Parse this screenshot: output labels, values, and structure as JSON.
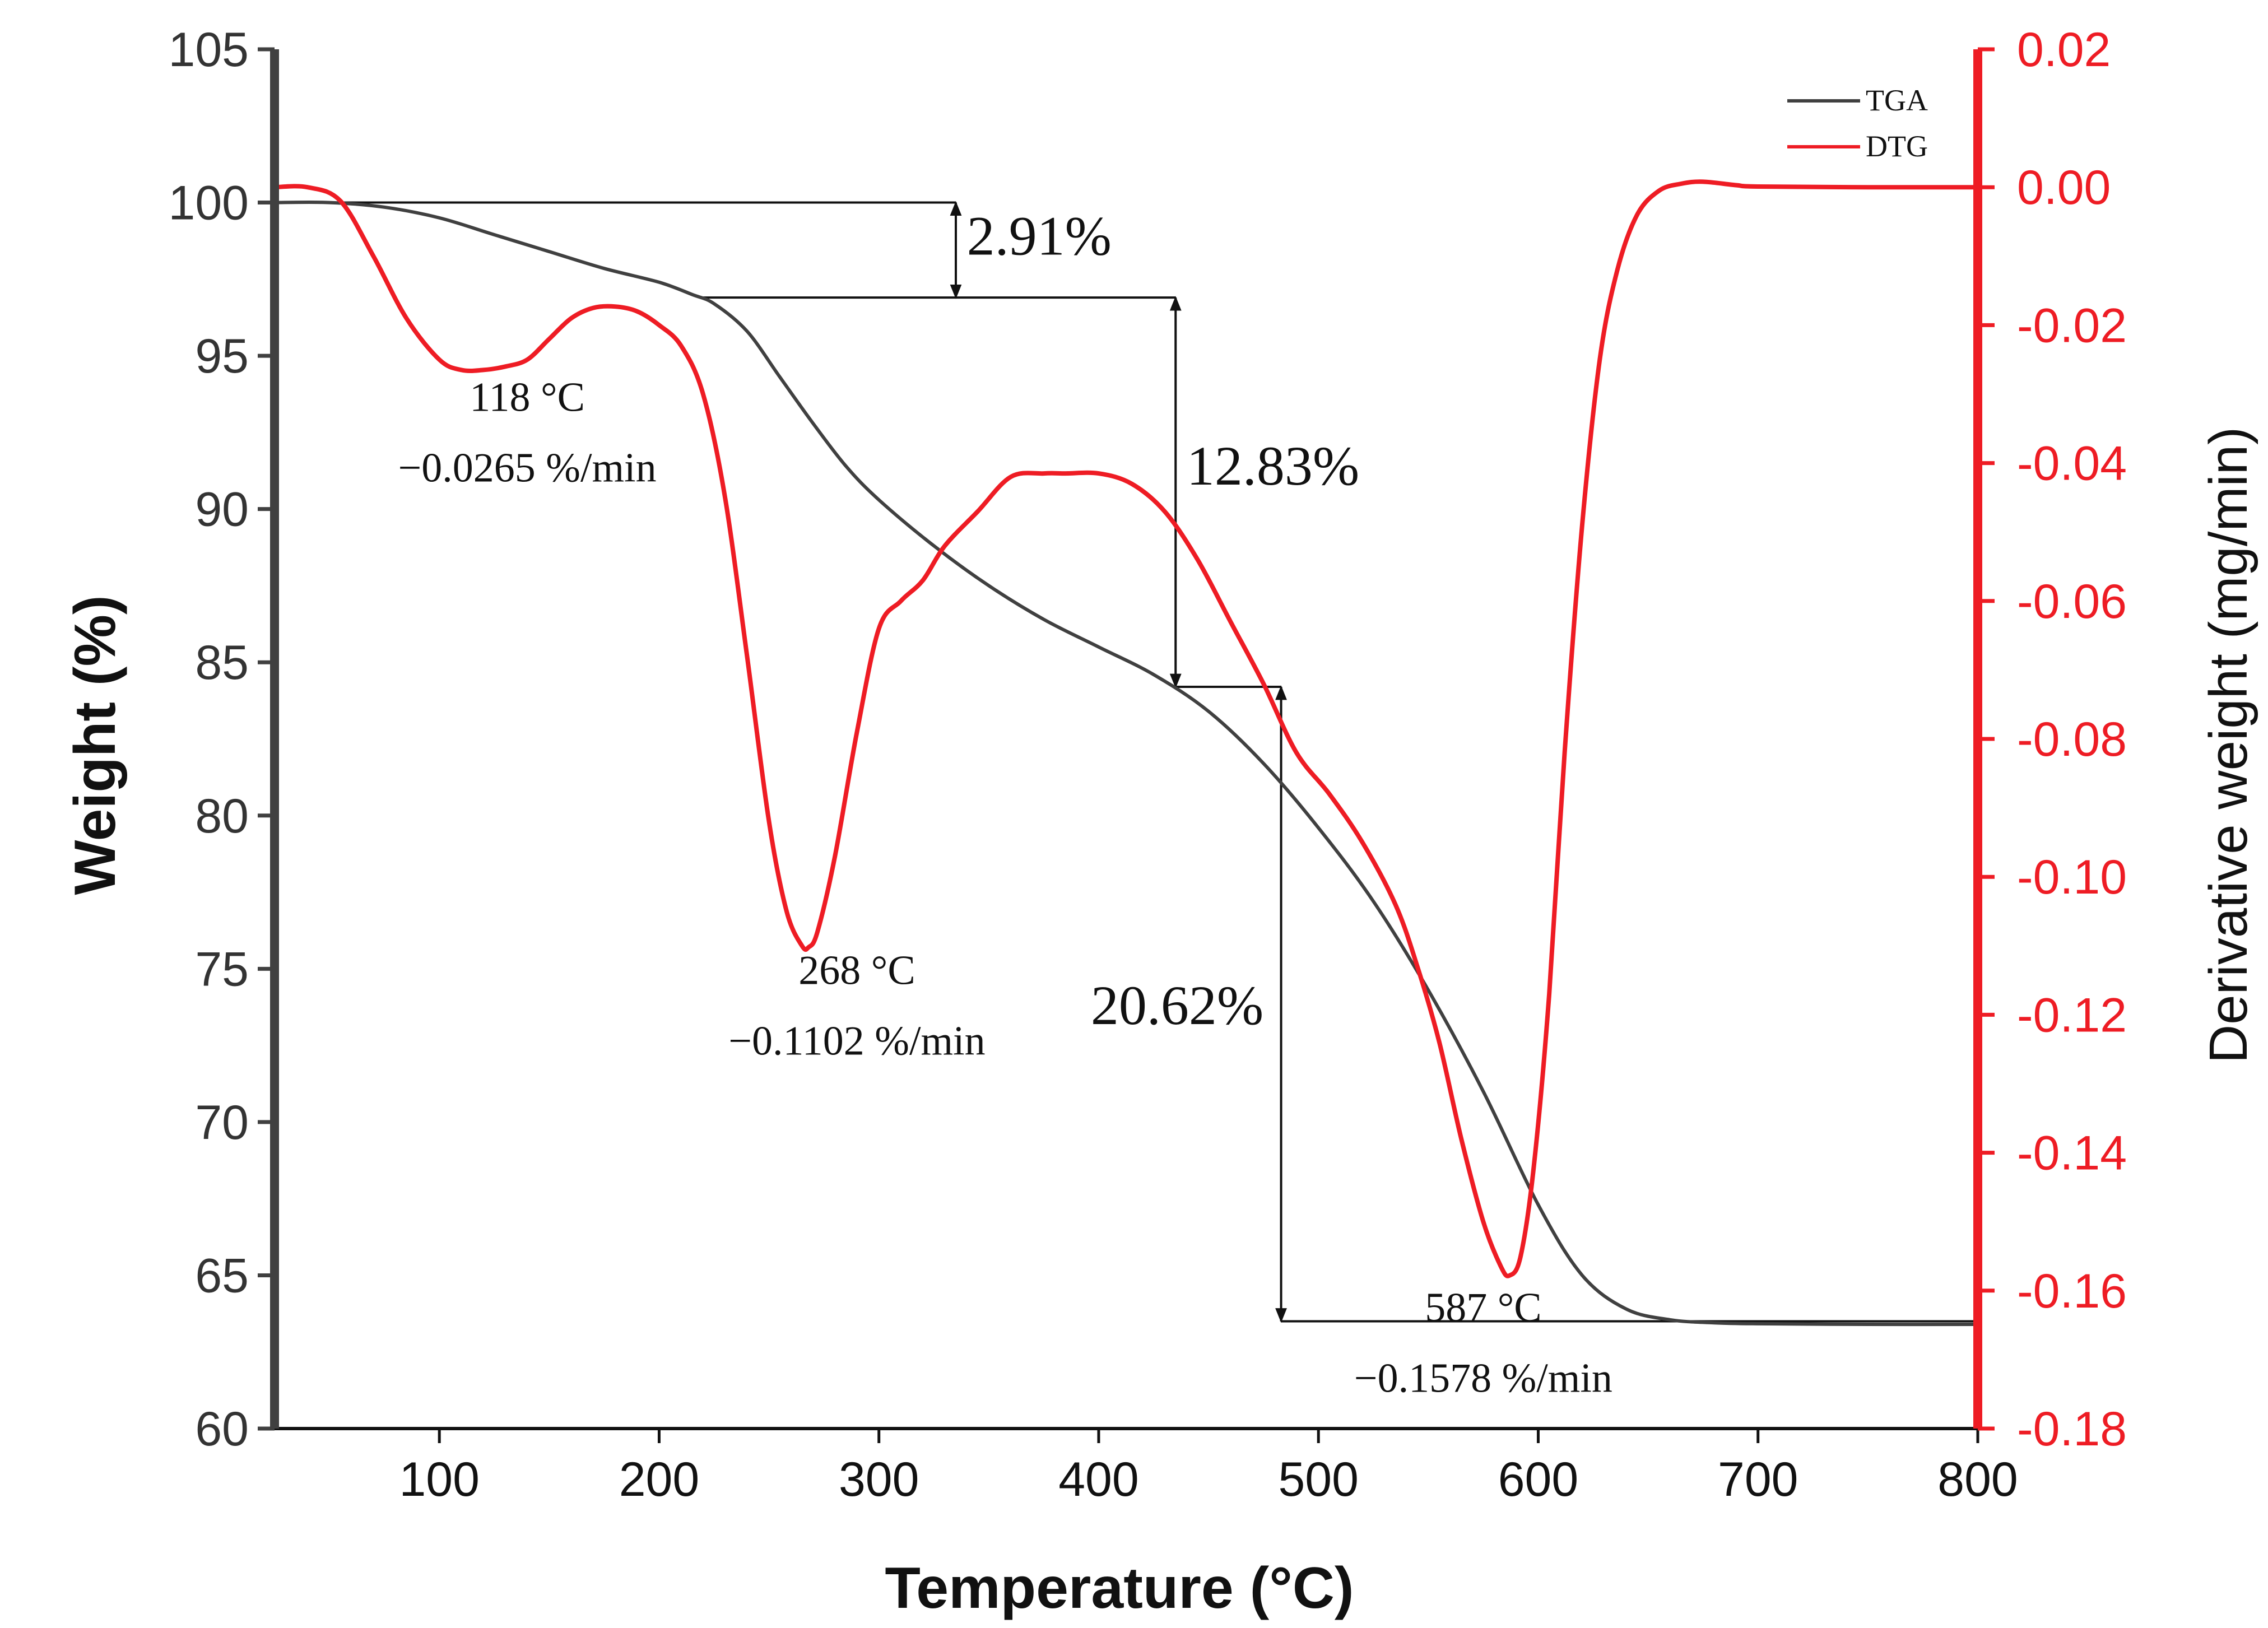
{
  "chart_data": {
    "type": "line",
    "x_label": "Temperature (°C)",
    "y_label_left": "Weight (%)",
    "y_label_right": "Derivative weight (mg/min)",
    "x_range": [
      25,
      800
    ],
    "y_left_range": [
      60,
      105
    ],
    "y_right_range": [
      -0.18,
      0.02
    ],
    "x_ticks": [
      100,
      200,
      300,
      400,
      500,
      600,
      700,
      800
    ],
    "y_left_ticks": [
      60,
      65,
      70,
      75,
      80,
      85,
      90,
      95,
      100,
      105
    ],
    "y_right_ticks": [
      -0.18,
      -0.16,
      -0.14,
      -0.12,
      -0.1,
      -0.08,
      -0.06,
      -0.04,
      -0.02,
      0.0,
      0.02
    ],
    "y_left_tick_labels": [
      "60",
      "65",
      "70",
      "75",
      "80",
      "85",
      "90",
      "95",
      "100",
      "105"
    ],
    "y_right_tick_labels": [
      "-0.18",
      "-0.16",
      "-0.14",
      "-0.12",
      "-0.10",
      "-0.08",
      "-0.06",
      "-0.04",
      "-0.02",
      "0.00",
      "0.02"
    ],
    "legend": [
      "TGA",
      "DTG"
    ],
    "series": [
      {
        "name": "TGA",
        "axis": "left",
        "color": "#404040",
        "x": [
          25,
          50,
          75,
          100,
          125,
          150,
          175,
          200,
          215,
          225,
          240,
          255,
          270,
          285,
          300,
          325,
          350,
          375,
          400,
          425,
          450,
          475,
          500,
          525,
          550,
          575,
          600,
          620,
          640,
          660,
          680,
          700,
          750,
          800
        ],
        "y": [
          100,
          100,
          99.85,
          99.5,
          98.95,
          98.4,
          97.85,
          97.4,
          97.0,
          96.7,
          95.8,
          94.3,
          92.8,
          91.4,
          90.3,
          88.8,
          87.5,
          86.4,
          85.5,
          84.6,
          83.4,
          81.7,
          79.6,
          77.2,
          74.3,
          71.0,
          67.3,
          65.0,
          63.9,
          63.55,
          63.45,
          63.42,
          63.4,
          63.4
        ]
      },
      {
        "name": "DTG",
        "axis": "right",
        "color": "#ee1c24",
        "x": [
          25,
          40,
          55,
          70,
          85,
          100,
          110,
          120,
          130,
          140,
          150,
          160,
          170,
          180,
          190,
          200,
          210,
          220,
          230,
          240,
          250,
          258,
          265,
          268,
          272,
          280,
          290,
          300,
          310,
          320,
          330,
          345,
          360,
          375,
          385,
          400,
          415,
          430,
          445,
          460,
          475,
          490,
          505,
          520,
          535,
          545,
          555,
          565,
          575,
          583,
          587,
          592,
          598,
          605,
          612,
          620,
          628,
          636,
          645,
          655,
          665,
          675,
          690,
          700,
          750,
          800
        ],
        "y": [
          0.0,
          0.0,
          -0.002,
          -0.01,
          -0.019,
          -0.025,
          -0.0265,
          -0.0265,
          -0.026,
          -0.025,
          -0.022,
          -0.019,
          -0.0175,
          -0.0173,
          -0.018,
          -0.02,
          -0.023,
          -0.03,
          -0.045,
          -0.068,
          -0.092,
          -0.105,
          -0.11,
          -0.1102,
          -0.108,
          -0.097,
          -0.079,
          -0.064,
          -0.06,
          -0.057,
          -0.052,
          -0.047,
          -0.042,
          -0.0415,
          -0.0415,
          -0.0415,
          -0.043,
          -0.047,
          -0.054,
          -0.063,
          -0.072,
          -0.082,
          -0.088,
          -0.095,
          -0.104,
          -0.113,
          -0.124,
          -0.138,
          -0.15,
          -0.1565,
          -0.1578,
          -0.155,
          -0.142,
          -0.117,
          -0.082,
          -0.049,
          -0.025,
          -0.012,
          -0.004,
          -0.0005,
          0.0005,
          0.0008,
          0.0003,
          0.0001,
          0.0,
          0.0
        ]
      }
    ],
    "annotations": [
      {
        "line1": "118 °C",
        "line2": "−0.0265 %/min",
        "x": 118,
        "series": "DTG"
      },
      {
        "line1": "268 °C",
        "line2": "−0.1102 %/min",
        "x": 268,
        "series": "DTG"
      },
      {
        "line1": "587 °C",
        "line2": "−0.1578 %/min",
        "x": 587,
        "series": "DTG"
      }
    ],
    "weight_losses": [
      {
        "label": "2.91%",
        "from": 100,
        "to": 96.9,
        "arrow_x": 335,
        "line_start_x": 25,
        "line_end_x": 335
      },
      {
        "label": "12.83%",
        "from": 96.9,
        "to": 84.2,
        "arrow_x": 435,
        "line_start_x": 220,
        "line_end_x": 435
      },
      {
        "label": "20.62%",
        "from": 84.2,
        "to": 63.5,
        "arrow_x": 483,
        "line_start_x": 435,
        "line_end_x": 483
      }
    ]
  }
}
